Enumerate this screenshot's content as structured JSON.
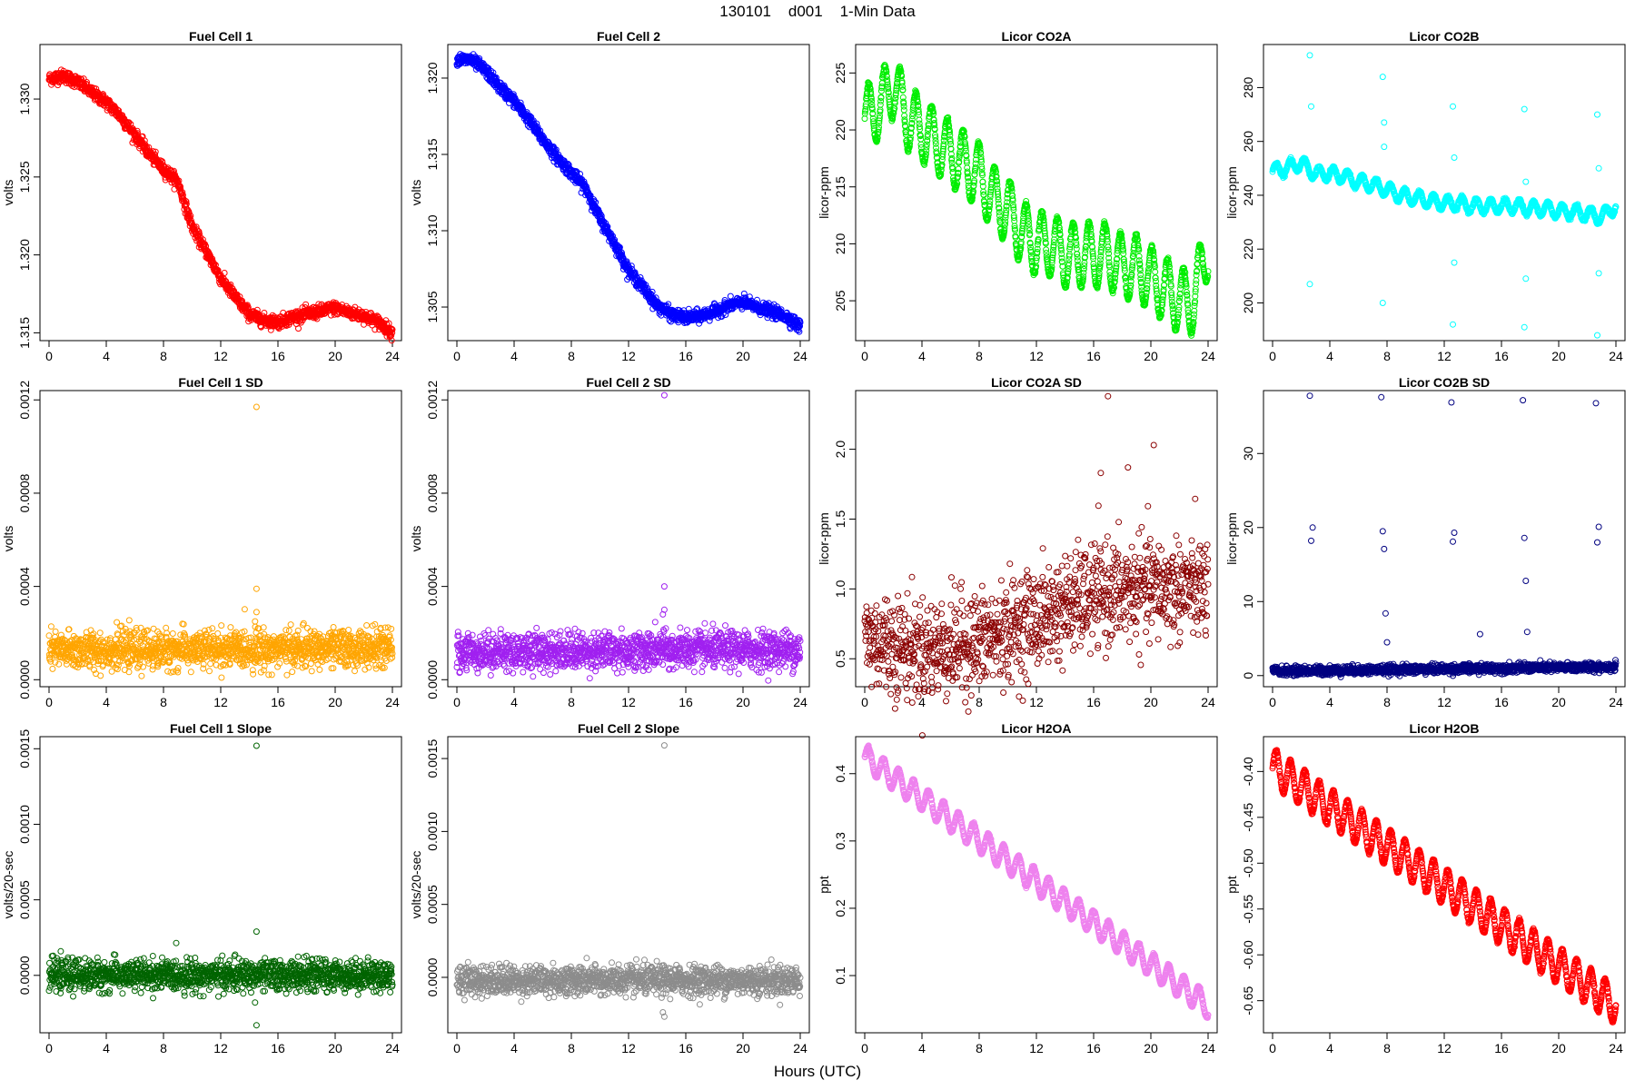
{
  "page": {
    "title": "130101    d001    1-Min Data",
    "xlabel": "Hours (UTC)"
  },
  "chart_data": [
    {
      "type": "scatter",
      "title": "Fuel Cell 1",
      "xlabel": "",
      "ylabel": "volts",
      "xlim": [
        0,
        24
      ],
      "ylim": [
        1.3145,
        1.3335
      ],
      "xticks": [
        0,
        4,
        8,
        12,
        16,
        20,
        24
      ],
      "yticks": [
        1.315,
        1.32,
        1.325,
        1.33
      ],
      "yticklabels": [
        "1.315",
        "1.320",
        "1.325",
        "1.330"
      ],
      "color": "#ff0000",
      "grid": false,
      "legend": "none",
      "points_n": 1440,
      "x": [
        0,
        1,
        2,
        3,
        4,
        5,
        6,
        7,
        8,
        9,
        10,
        11,
        12,
        13,
        14,
        15,
        16,
        17,
        18,
        19,
        20,
        21,
        22,
        23,
        24
      ],
      "y": [
        1.3313,
        1.3315,
        1.3311,
        1.3304,
        1.3298,
        1.3289,
        1.3277,
        1.3265,
        1.3255,
        1.3247,
        1.3218,
        1.3202,
        1.3185,
        1.3173,
        1.3162,
        1.3158,
        1.3157,
        1.316,
        1.3162,
        1.3164,
        1.3166,
        1.3163,
        1.3161,
        1.3157,
        1.315
      ],
      "noise": 0.0002
    },
    {
      "type": "scatter",
      "title": "Fuel Cell 2",
      "xlabel": "",
      "ylabel": "volts",
      "xlim": [
        0,
        24
      ],
      "ylim": [
        1.3028,
        1.3222
      ],
      "xticks": [
        0,
        4,
        8,
        12,
        16,
        20,
        24
      ],
      "yticks": [
        1.305,
        1.31,
        1.315,
        1.32
      ],
      "yticklabels": [
        "1.305",
        "1.310",
        "1.315",
        "1.320"
      ],
      "color": "#0000ff",
      "grid": false,
      "legend": "none",
      "points_n": 1440,
      "x": [
        0,
        1,
        2,
        3,
        4,
        5,
        6,
        7,
        8,
        9,
        10,
        11,
        12,
        13,
        14,
        15,
        16,
        17,
        18,
        19,
        20,
        21,
        22,
        23,
        24
      ],
      "y": [
        1.3212,
        1.3212,
        1.3205,
        1.3194,
        1.3185,
        1.3173,
        1.316,
        1.3148,
        1.3138,
        1.3128,
        1.3108,
        1.3092,
        1.3074,
        1.3063,
        1.3051,
        1.3045,
        1.3043,
        1.3044,
        1.3047,
        1.3051,
        1.3053,
        1.305,
        1.3047,
        1.3044,
        1.3037
      ],
      "noise": 0.0002
    },
    {
      "type": "scatter",
      "title": "Licor CO2A",
      "xlabel": "",
      "ylabel": "licor-ppm",
      "xlim": [
        0,
        24
      ],
      "ylim": [
        201.5,
        227.5
      ],
      "xticks": [
        0,
        4,
        8,
        12,
        16,
        20,
        24
      ],
      "yticks": [
        205,
        210,
        215,
        220,
        225
      ],
      "yticklabels": [
        "205",
        "210",
        "215",
        "220",
        "225"
      ],
      "color": "#00ee00",
      "grid": false,
      "legend": "none",
      "points_n": 1440,
      "x": [
        0,
        1,
        2,
        3,
        4,
        5,
        6,
        7,
        8,
        9,
        10,
        11,
        12,
        13,
        14,
        15,
        16,
        17,
        18,
        19,
        20,
        21,
        22,
        23,
        24
      ],
      "y": [
        221,
        222,
        224,
        221,
        220,
        219,
        218,
        217,
        216,
        214,
        213,
        211,
        210,
        210,
        209,
        209,
        209,
        209,
        208,
        208,
        207,
        206,
        205,
        205,
        210
      ],
      "wave_amp": 2.8,
      "wave_period": 1.1,
      "noise": 0.1
    },
    {
      "type": "scatter",
      "title": "Licor CO2B",
      "xlabel": "",
      "ylabel": "licor-ppm",
      "xlim": [
        0,
        24
      ],
      "ylim": [
        186,
        296
      ],
      "xticks": [
        0,
        4,
        8,
        12,
        16,
        20,
        24
      ],
      "yticks": [
        200,
        220,
        240,
        260,
        280
      ],
      "yticklabels": [
        "200",
        "220",
        "240",
        "260",
        "280"
      ],
      "color": "#00ffff",
      "grid": false,
      "legend": "none",
      "points_n": 1440,
      "x": [
        0,
        1,
        2,
        3,
        4,
        5,
        6,
        7,
        8,
        9,
        10,
        11,
        12,
        13,
        14,
        15,
        16,
        17,
        18,
        19,
        20,
        21,
        22,
        23,
        24
      ],
      "y": [
        249,
        250,
        252,
        248,
        248,
        247,
        245,
        244,
        242,
        240,
        239,
        238,
        237,
        237,
        236,
        236,
        236,
        236,
        235,
        235,
        234,
        234,
        233,
        232,
        236
      ],
      "wave_amp": 2.5,
      "wave_period": 1.0,
      "noise": 0.3,
      "outlier_x": [
        2.6,
        2.7,
        2.6,
        7.7,
        7.8,
        7.7,
        7.8,
        12.6,
        12.7,
        12.6,
        12.7,
        17.6,
        17.7,
        17.6,
        17.7,
        22.7,
        22.8,
        22.7,
        22.8
      ],
      "outlier_y": [
        292,
        273,
        207,
        284,
        267,
        200,
        258,
        273,
        254,
        192,
        215,
        272,
        245,
        191,
        209,
        270,
        250,
        188,
        211
      ]
    },
    {
      "type": "scatter",
      "title": "Fuel Cell 1 SD",
      "xlabel": "",
      "ylabel": "volts",
      "xlim": [
        0,
        24
      ],
      "ylim": [
        -3e-05,
        0.00124
      ],
      "xticks": [
        0,
        4,
        8,
        12,
        16,
        20,
        24
      ],
      "yticks": [
        0,
        0.0004,
        0.0008,
        0.0012
      ],
      "yticklabels": [
        "0.0000",
        "0.0004",
        "0.0008",
        "0.0012"
      ],
      "color": "#ffa500",
      "grid": false,
      "legend": "none",
      "points_n": 1440,
      "x": [
        0,
        24
      ],
      "y": [
        0.000125,
        0.000135
      ],
      "noise": 4e-05,
      "outlier_x": [
        14.5,
        14.5,
        14.5,
        14.4,
        14.6
      ],
      "outlier_y": [
        0.00117,
        0.00039,
        0.00029,
        0.00025,
        0.00022
      ]
    },
    {
      "type": "scatter",
      "title": "Fuel Cell 2 SD",
      "xlabel": "",
      "ylabel": "volts",
      "xlim": [
        0,
        24
      ],
      "ylim": [
        -3e-05,
        0.00124
      ],
      "xticks": [
        0,
        4,
        8,
        12,
        16,
        20,
        24
      ],
      "yticks": [
        0,
        0.0004,
        0.0008,
        0.0012
      ],
      "yticklabels": [
        "0.0000",
        "0.0004",
        "0.0008",
        "0.0012"
      ],
      "color": "#a020f0",
      "grid": false,
      "legend": "none",
      "points_n": 1440,
      "x": [
        0,
        24
      ],
      "y": [
        0.00012,
        0.00013
      ],
      "noise": 4e-05,
      "outlier_x": [
        14.5,
        14.5,
        14.5,
        14.4,
        14.6
      ],
      "outlier_y": [
        0.00122,
        0.0004,
        0.0003,
        0.00028,
        0.00022
      ]
    },
    {
      "type": "scatter",
      "title": "Licor CO2A SD",
      "xlabel": "",
      "ylabel": "licor-ppm",
      "xlim": [
        0,
        24
      ],
      "ylim": [
        0.3,
        2.42
      ],
      "xticks": [
        0,
        4,
        8,
        12,
        16,
        20,
        24
      ],
      "yticks": [
        0.5,
        1.0,
        1.5,
        2.0
      ],
      "yticklabels": [
        "0.5",
        "1.0",
        "1.5",
        "2.0"
      ],
      "color": "#8b0000",
      "grid": false,
      "legend": "none",
      "points_n": 1200,
      "x": [
        0,
        4,
        8,
        12,
        16,
        20,
        24
      ],
      "y": [
        0.65,
        0.56,
        0.62,
        0.78,
        0.95,
        1.0,
        1.0
      ],
      "noise": 0.18,
      "outlier_x": [
        17,
        20.2,
        18.4,
        16.5
      ],
      "outlier_y": [
        2.38,
        2.03,
        1.87,
        1.83
      ]
    },
    {
      "type": "scatter",
      "title": "Licor CO2B SD",
      "xlabel": "",
      "ylabel": "licor-ppm",
      "xlim": [
        0,
        24
      ],
      "ylim": [
        -1.5,
        38.5
      ],
      "xticks": [
        0,
        4,
        8,
        12,
        16,
        20,
        24
      ],
      "yticks": [
        0,
        10,
        20,
        30
      ],
      "yticklabels": [
        "0",
        "10",
        "20",
        "30"
      ],
      "color": "#000080",
      "grid": false,
      "legend": "none",
      "points_n": 1440,
      "x": [
        0,
        24
      ],
      "y": [
        0.6,
        1.2
      ],
      "noise": 0.3,
      "outlier_x": [
        2.6,
        2.8,
        2.7,
        7.6,
        7.7,
        7.8,
        7.9,
        8.0,
        12.5,
        12.6,
        12.7,
        14.5,
        17.5,
        17.7,
        17.8,
        17.6,
        22.6,
        22.8,
        22.7
      ],
      "outlier_y": [
        37.8,
        20,
        18.2,
        37.6,
        19.5,
        17.1,
        8.4,
        4.5,
        36.9,
        18.1,
        19.3,
        5.6,
        37.2,
        12.8,
        5.9,
        18.6,
        36.8,
        20.1,
        18
      ]
    },
    {
      "type": "scatter",
      "title": "Fuel Cell 1 Slope",
      "xlabel": "",
      "ylabel": "volts/20-sec",
      "xlim": [
        0,
        24
      ],
      "ylim": [
        -0.00038,
        0.00158
      ],
      "xticks": [
        0,
        4,
        8,
        12,
        16,
        20,
        24
      ],
      "yticks": [
        0,
        0.0005,
        0.001,
        0.0015
      ],
      "yticklabels": [
        "0.0000",
        "0.0005",
        "0.0010",
        "0.0015"
      ],
      "color": "#006400",
      "grid": false,
      "legend": "none",
      "points_n": 1440,
      "x": [
        0,
        24
      ],
      "y": [
        0,
        0
      ],
      "noise": 5e-05,
      "outlier_x": [
        14.5,
        14.5,
        14.5,
        14.4
      ],
      "outlier_y": [
        0.00152,
        0.00029,
        -0.00033,
        -0.00018
      ]
    },
    {
      "type": "scatter",
      "title": "Fuel Cell 2 Slope",
      "xlabel": "",
      "ylabel": "volts/20-sec",
      "xlim": [
        0,
        24
      ],
      "ylim": [
        -0.00038,
        0.00165
      ],
      "xticks": [
        0,
        4,
        8,
        12,
        16,
        20,
        24
      ],
      "yticks": [
        0,
        0.0005,
        0.001,
        0.0015
      ],
      "yticklabels": [
        "0.0000",
        "0.0005",
        "0.0010",
        "0.0015"
      ],
      "color": "#8c8c8c",
      "grid": false,
      "legend": "none",
      "points_n": 1440,
      "x": [
        0,
        24
      ],
      "y": [
        -2e-05,
        -2e-05
      ],
      "noise": 5e-05,
      "outlier_x": [
        14.5,
        14.4,
        14.5
      ],
      "outlier_y": [
        0.00159,
        -0.00024,
        -0.00027
      ]
    },
    {
      "type": "scatter",
      "title": "Licor H2OA",
      "xlabel": "",
      "ylabel": "ppt",
      "xlim": [
        0,
        24
      ],
      "ylim": [
        0.015,
        0.455
      ],
      "xticks": [
        0,
        4,
        8,
        12,
        16,
        20,
        24
      ],
      "yticks": [
        0.1,
        0.2,
        0.3,
        0.4
      ],
      "yticklabels": [
        "0.1",
        "0.2",
        "0.3",
        "0.4"
      ],
      "color": "#ee82ee",
      "grid": false,
      "legend": "none",
      "points_n": 1440,
      "x": [
        0,
        24
      ],
      "y": [
        0.425,
        0.055
      ],
      "wave_amp": 0.018,
      "wave_period": 1.05,
      "noise": 0.001
    },
    {
      "type": "scatter",
      "title": "Licor H2OB",
      "xlabel": "",
      "ylabel": "ppt",
      "xlim": [
        0,
        24
      ],
      "ylim": [
        -0.685,
        -0.362
      ],
      "xticks": [
        0,
        4,
        8,
        12,
        16,
        20,
        24
      ],
      "yticks": [
        -0.65,
        -0.6,
        -0.55,
        -0.5,
        -0.45,
        -0.4
      ],
      "yticklabels": [
        "-0.65",
        "-0.60",
        "-0.55",
        "-0.50",
        "-0.45",
        "-0.40"
      ],
      "color": "#ff0000",
      "grid": false,
      "legend": "none",
      "points_n": 1440,
      "x": [
        0,
        24
      ],
      "y": [
        -0.395,
        -0.655
      ],
      "wave_amp": 0.02,
      "wave_period": 1.0,
      "noise": 0.001
    }
  ]
}
